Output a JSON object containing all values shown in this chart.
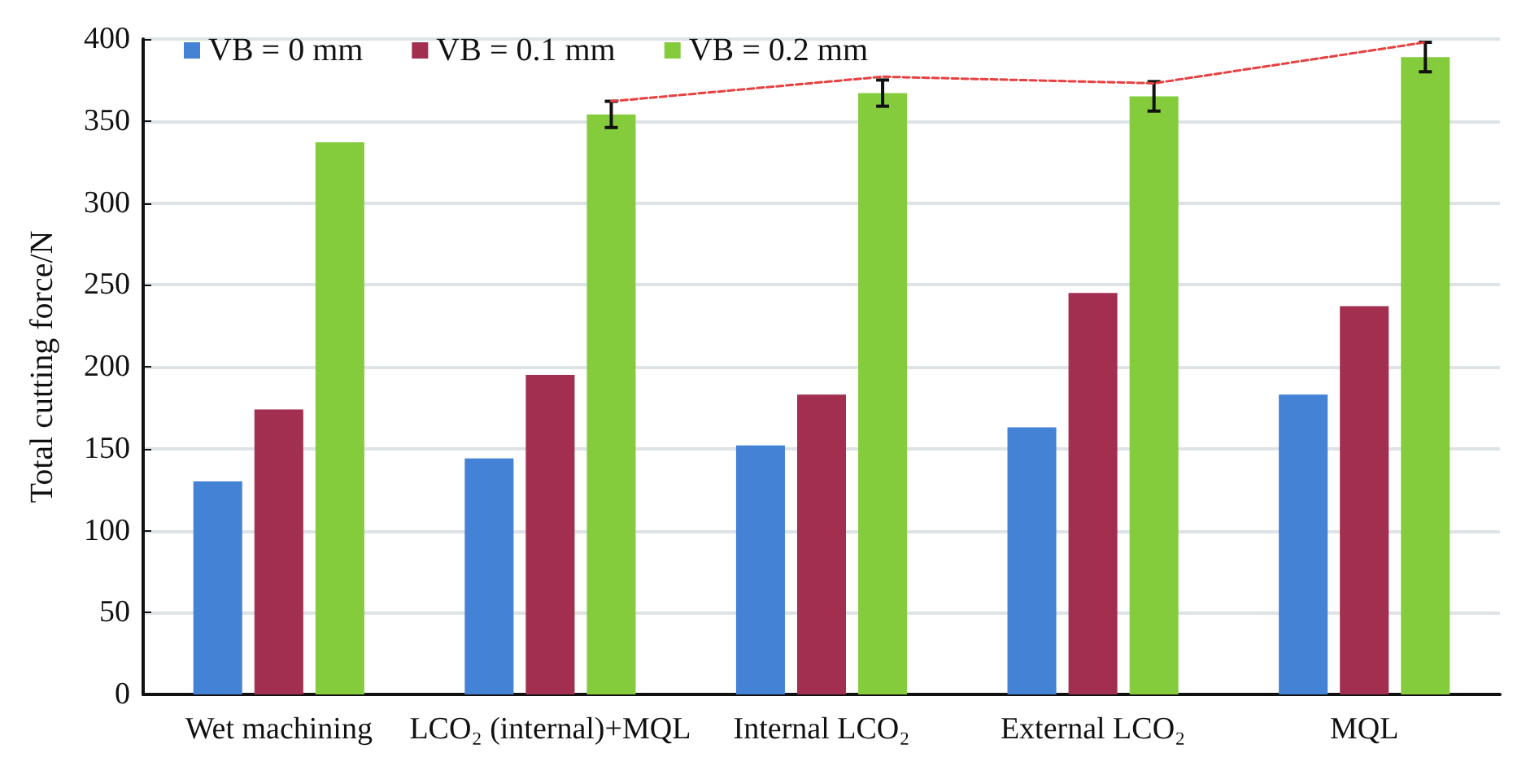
{
  "chart_data": {
    "type": "bar",
    "ylabel": "Total cutting force/N",
    "categories": [
      "Wet machining",
      "LCO₂ (internal)+MQL",
      "Internal LCO₂",
      "External LCO₂",
      "MQL"
    ],
    "series": [
      {
        "name": "VB = 0 mm",
        "color": "#4482d6",
        "values": [
          130,
          144,
          152,
          163,
          183
        ]
      },
      {
        "name": "VB = 0.1 mm",
        "color": "#a32f50",
        "values": [
          174,
          195,
          183,
          245,
          237
        ]
      },
      {
        "name": "VB = 0.2 mm",
        "color": "#84cc3c",
        "values": [
          337,
          354,
          367,
          365,
          389
        ],
        "errors": [
          null,
          8,
          8,
          9,
          9
        ]
      },
      {
        "type": "line",
        "color": "#e84040",
        "line_style": "dashed",
        "marker": "none",
        "x": [
          "LCO₂ (internal)+MQL",
          "Internal LCO₂",
          "External LCO₂",
          "MQL"
        ],
        "values": [
          362,
          377,
          373,
          398
        ]
      }
    ],
    "ylim": [
      0,
      400
    ],
    "yticks": [
      0,
      50,
      100,
      150,
      200,
      250,
      300,
      350,
      400
    ],
    "grid": "y",
    "legend": "top"
  }
}
